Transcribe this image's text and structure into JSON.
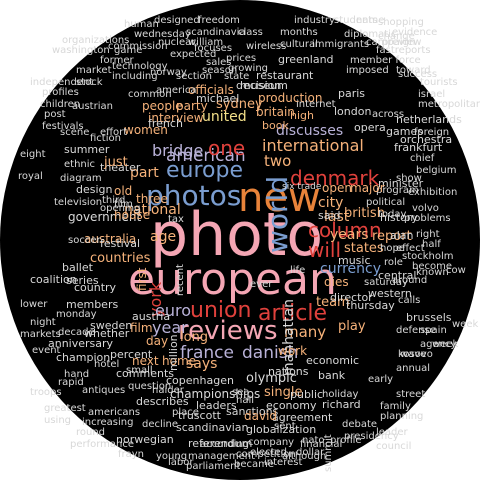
{
  "colors": {
    "background": "#000000",
    "pink": "#f4a6b4",
    "orange": "#e8833a",
    "red": "#e0413c",
    "blue": "#7a9dd0",
    "lavender": "#b9b2d8",
    "peach": "#f6b27a",
    "teal": "#8fd1c8",
    "light": "#d8d8d8",
    "yellow": "#f3e08a",
    "green": "#9fd083"
  },
  "words": {
    "photo": "photo",
    "european": "european",
    "new": "new",
    "photos": "photos",
    "reviews": "reviews",
    "union": "union",
    "article": "article",
    "world": "world",
    "denmark": "denmark",
    "europe": "europe",
    "american": "american",
    "one": "one",
    "column": "column",
    "will": "will",
    "york": "york",
    "france": "france",
    "danish": "danish",
    "euro": "euro",
    "year": "year",
    "bridge": "bridge",
    "national": "national",
    "currency": "currency",
    "international": "international",
    "government": "government",
    "united": "united",
    "two": "two",
    "many": "many",
    "years": "years",
    "city": "city",
    "last": "last",
    "report": "report",
    "music": "music",
    "manhattan": "manhattan",
    "single": "single",
    "copenhagen": "copenhagen",
    "olympic": "olympic",
    "discusses": "discusses",
    "three": "three",
    "championships": "championships",
    "film": "film",
    "house": "house",
    "countries": "countries",
    "australia": "australia",
    "states": "states",
    "sydney": "sydney",
    "interview": "interview",
    "party": "party",
    "britain": "britain",
    "production": "production",
    "book": "book",
    "officials": "officials",
    "sweden": "sweden",
    "members": "members",
    "team": "team",
    "play": "play",
    "british": "british",
    "open": "open",
    "dies": "dies",
    "women": "women",
    "part": "part",
    "music2": "shows",
    "restaurant": "restaurant",
    "museum": "museum",
    "opera": "opera",
    "team2": "high",
    "austria": "austria",
    "says": "says",
    "country": "country",
    "festival": "festival",
    "summer": "summer",
    "theater": "theater",
    "whether": "whether",
    "leaders": "leaders",
    "sanctions": "sanctions",
    "scandinavian": "scandinavian",
    "economic": "economic",
    "work": "work",
    "nations": "nations",
    "percent": "percent",
    "frankfurt": "frankfurt",
    "netherlands": "netherlands",
    "paris": "paris",
    "london": "london",
    "greenland": "greenland",
    "industry": "industry",
    "shopping": "shopping",
    "freedom": "freedom",
    "human": "human",
    "designed": "designed",
    "students": "students",
    "name": "name",
    "washington": "washington",
    "organizations": "organizations",
    "cultural": "cultural",
    "immigrants": "immigrants",
    "wireless": "wireless",
    "kosovo": "kosovo",
    "belgium": "belgium",
    "orchestra": "orchestra",
    "metropolitan": "metropolitan",
    "stockholm": "stockholm",
    "brussels": "brussels",
    "exhibition": "exhibition",
    "program": "program",
    "history": "history",
    "minister": "minister",
    "children": "children",
    "anniversary": "anniversary",
    "champion": "champion",
    "television": "television",
    "design": "design",
    "ballet": "ballet",
    "coalition": "coalition",
    "series": "series",
    "referendum": "referendum",
    "norwegian": "norwegian",
    "competition": "competition",
    "management": "management",
    "interest": "interest",
    "financial": "financial",
    "became": "became",
    "globalization": "globalization",
    "company": "company",
    "agreement": "agreement",
    "economy": "economy",
    "richard": "richard",
    "truscott": "truscott",
    "describes": "describes",
    "comments": "comments",
    "family": "family",
    "planning": "planning",
    "street": "street",
    "agency": "agency",
    "week": "week",
    "central": "central",
    "western": "western",
    "william": "william",
    "sales": "sales",
    "season": "season",
    "china": "china",
    "center": "center",
    "germany": "germany",
    "private": "private",
    "march": "march",
    "jazz": "jazz",
    "show": "show",
    "fashion": "fashion",
    "russia": "russia",
    "crisis": "crisis",
    "whose": "whose",
    "comment": "comment",
    "technology": "technology",
    "norway": "norway",
    "including": "including",
    "commission": "commission",
    "nuclear": "nuclear",
    "focuses": "focuses",
    "scandinavia": "scandinavia",
    "class": "class",
    "months": "months",
    "expected": "expected",
    "french": "french",
    "michael": "michael",
    "common": "common",
    "america": "america",
    "state": "state",
    "section": "section",
    "internet": "internet",
    "mixed": "mixed",
    "heads": "heads",
    "rights": "rights",
    "market": "market",
    "former": "former",
    "independent": "independent",
    "austrian": "austrian",
    "profiles": "profiles",
    "stock": "stock",
    "festivals": "festivals",
    "fiction": "fiction",
    "royal": "royal",
    "ethnic": "ethnic",
    "diagram": "diagram",
    "soccer": "soccer",
    "stock2": "times",
    "lower": "lower",
    "monday": "monday",
    "building": "building",
    "night": "night",
    "decade": "decade",
    "event": "event",
    "markets": "markets",
    "hand": "hand",
    "rapid": "rapid",
    "troops": "troops",
    "greatest": "greatest",
    "using": "using",
    "round": "round",
    "performance": "performance",
    "increasing": "increasing",
    "americans": "americans",
    "antiques": "antiques",
    "hotel": "hotel",
    "next": "next",
    "home": "home",
    "small": "small",
    "question": "question",
    "haider": "haider",
    "place": "place",
    "fashion2": "finland",
    "sea": "sea",
    "hall": "hall",
    "david": "david",
    "public": "public",
    "holiday": "holiday",
    "early": "early",
    "wave": "wave",
    "annual": "annual",
    "defense": "defense",
    "spain": "spain",
    "norway2": "vienna",
    "calls": "calls",
    "agency2": "already",
    "director": "director",
    "thursday": "thursday",
    "around": "around",
    "saturday": "saturday",
    "post": "post",
    "eight": "eight",
    "music3": "music",
    "nato": "nato",
    "dollar": "dollar",
    "union2": "monetary",
    "council": "council",
    "presidency": "presidency",
    "debate": "debate",
    "toward": "toward",
    "success": "success",
    "tourists": "tourists",
    "israel": "israel",
    "metro": "metro",
    "across": "across",
    "games": "games",
    "foreign": "foreign",
    "chief": "chief",
    "volvo": "volvo",
    "problems": "problems",
    "right": "right",
    "half": "half",
    "effect": "effect",
    "become": "become",
    "people": "people",
    "known": "known",
    "cow": "cow",
    "alan": "alan",
    "hope": "hope",
    "photographs": "photographs",
    "political": "political",
    "today": "today",
    "london2": "lisbon",
    "major": "major",
    "said": "said",
    "just": "just",
    "age": "age",
    "first": "first",
    "long": "long",
    "million": "million",
    "old": "old",
    "day": "day",
    "high": "high",
    "recent": "recent",
    "big": "big",
    "good": "good",
    "second": "second",
    "tax": "tax",
    "six": "six trade",
    "life": "life",
    "ever": "ever",
    "world2": "world",
    "fall": "fall",
    "fourth": "fourth",
    "press": "press",
    "fans": "fans",
    "show2": "show",
    "free": "free",
    "cup": "cup",
    "film2": "film",
    "friday": "friday",
    "top": "top",
    "green": "green",
    "wind": "wind",
    "gold": "gold",
    "race": "race",
    "face": "face",
    "role": "role",
    "sold": "sold",
    "lead": "lead",
    "week2": "week",
    "tour": "tour",
    "deal": "deal",
    "jan": "jan",
    "bank": "bank",
    "art": "art",
    "past": "past",
    "cars": "cars",
    "local": "local",
    "zone": "zone",
    "dutch": "dutch",
    "shows": "shows",
    "stars": "stars",
    "jobs": "jobs",
    "parliament": "parliament",
    "labor": "labor",
    "young": "young",
    "according": "according",
    "sent": "sent",
    "elected": "elected",
    "although": "although",
    "summit": "summit",
    "profile": "profile",
    "leader": "leader",
    "good2": "good",
    "rock": "rock",
    "frayn": "frayn",
    "need": "need",
    "decline": "decline",
    "plan": "plan",
    "military": "military",
    "campaign": "campaign",
    "change": "change",
    "evidence": "evidence",
    "diplomatic": "diplomatic",
    "preview": "preview",
    "fastreports": "fastreports",
    "member": "member force",
    "imposed": "imposed",
    "scenes": "scenes",
    "natural": "natural",
    "golf": "golf",
    "bring": "bring",
    "bus": "bus",
    "journey": "journey",
    "wednesday": "wednesday",
    "prices": "prices",
    "growing": "growing",
    "decision": "decision",
    "gets": "gets",
    "beyond": "beyond",
    "game": "game",
    "nine": "nine",
    "ireland": "ireland",
    "vikings": "vikings",
    "chances": "chances",
    "scene": "scene",
    "voters": "voters",
    "glass": "glass",
    "effort": "effort",
    "festival2": "face",
    "began": "began",
    "opening": "opening",
    "third": "third",
    "portrait": "portrait"
  }
}
